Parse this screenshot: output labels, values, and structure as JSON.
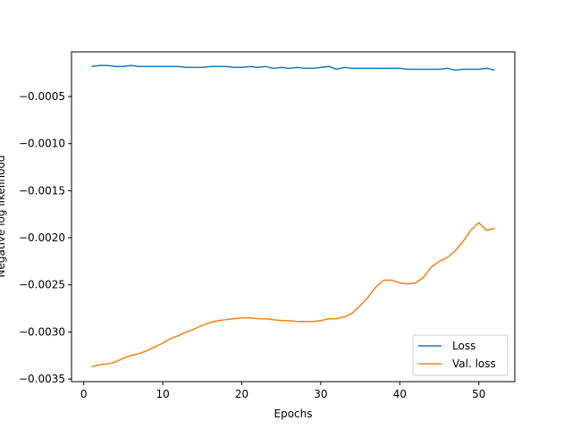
{
  "chart_data": {
    "type": "line",
    "xlabel": "Epochs",
    "ylabel": "Negative log likelihood",
    "x": [
      1,
      2,
      3,
      4,
      5,
      6,
      7,
      8,
      9,
      10,
      11,
      12,
      13,
      14,
      15,
      16,
      17,
      18,
      19,
      20,
      21,
      22,
      23,
      24,
      25,
      26,
      27,
      28,
      29,
      30,
      31,
      32,
      33,
      34,
      35,
      36,
      37,
      38,
      39,
      40,
      41,
      42,
      43,
      44,
      45,
      46,
      47,
      48,
      49,
      50,
      51,
      52
    ],
    "series": [
      {
        "name": "Loss",
        "color": "#1f77b4",
        "values": [
          -0.00018,
          -0.00017,
          -0.00017,
          -0.00018,
          -0.00018,
          -0.00017,
          -0.00018,
          -0.00018,
          -0.00018,
          -0.00018,
          -0.00018,
          -0.00018,
          -0.00019,
          -0.00019,
          -0.00019,
          -0.00018,
          -0.00018,
          -0.00018,
          -0.00019,
          -0.00019,
          -0.00018,
          -0.00019,
          -0.00018,
          -0.0002,
          -0.00019,
          -0.0002,
          -0.00019,
          -0.0002,
          -0.0002,
          -0.00019,
          -0.00018,
          -0.00021,
          -0.00019,
          -0.0002,
          -0.0002,
          -0.0002,
          -0.0002,
          -0.0002,
          -0.0002,
          -0.0002,
          -0.00021,
          -0.00021,
          -0.00021,
          -0.00021,
          -0.00021,
          -0.0002,
          -0.00022,
          -0.00021,
          -0.00021,
          -0.00021,
          -0.0002,
          -0.00022
        ]
      },
      {
        "name": "Val. loss",
        "color": "#ff7f0e",
        "values": [
          -0.00337,
          -0.00335,
          -0.00334,
          -0.00332,
          -0.00328,
          -0.00325,
          -0.00323,
          -0.0032,
          -0.00316,
          -0.00312,
          -0.00307,
          -0.00304,
          -0.003,
          -0.00297,
          -0.00293,
          -0.0029,
          -0.00288,
          -0.00287,
          -0.00286,
          -0.00285,
          -0.00285,
          -0.00286,
          -0.00286,
          -0.00287,
          -0.00288,
          -0.00288,
          -0.00289,
          -0.00289,
          -0.00289,
          -0.00288,
          -0.00286,
          -0.00286,
          -0.00284,
          -0.0028,
          -0.00272,
          -0.00263,
          -0.00252,
          -0.00245,
          -0.00245,
          -0.00248,
          -0.00249,
          -0.00248,
          -0.00242,
          -0.00231,
          -0.00225,
          -0.00221,
          -0.00214,
          -0.00204,
          -0.00192,
          -0.00184,
          -0.00192,
          -0.0019
        ]
      }
    ],
    "xlim": [
      -1.55,
      54.55
    ],
    "xticks": [
      0,
      10,
      20,
      30,
      40,
      50
    ],
    "ylim": [
      -0.003528,
      -2.5e-05
    ],
    "yticks": [
      {
        "value": -0.0035,
        "label": "−0.0035"
      },
      {
        "value": -0.003,
        "label": "−0.0030"
      },
      {
        "value": -0.0025,
        "label": "−0.0025"
      },
      {
        "value": -0.002,
        "label": "−0.0020"
      },
      {
        "value": -0.0015,
        "label": "−0.0015"
      },
      {
        "value": -0.001,
        "label": "−0.0010"
      },
      {
        "value": -0.0005,
        "label": "−0.0005"
      }
    ],
    "legend": "lower right"
  }
}
